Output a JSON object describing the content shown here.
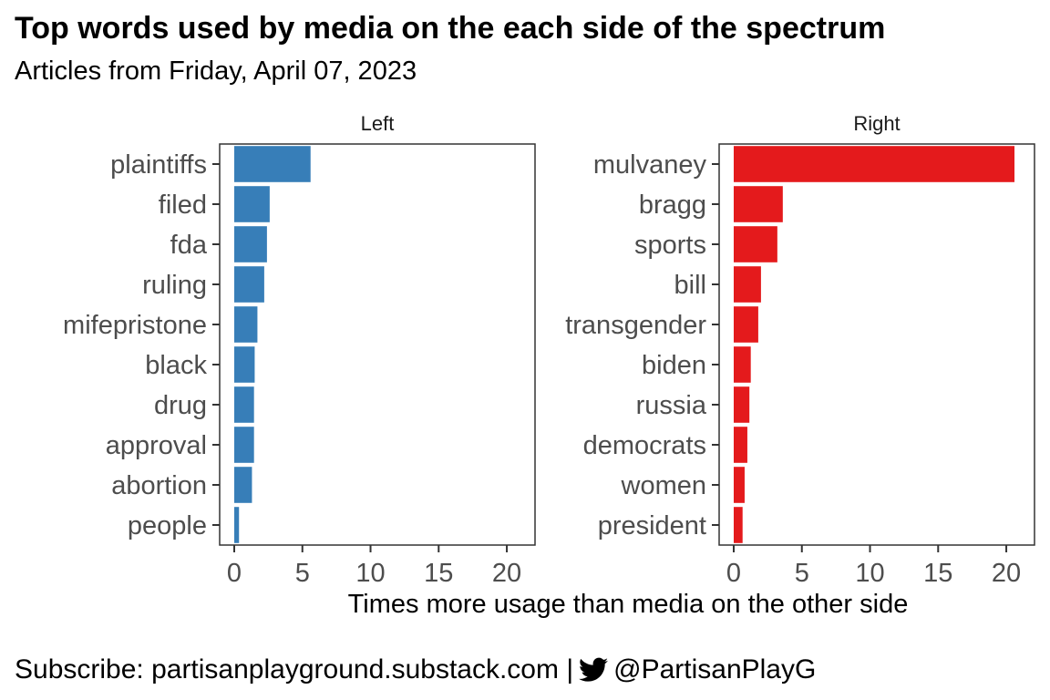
{
  "chart_data": {
    "type": "bar",
    "orientation": "horizontal",
    "title": "Top words used by media on the each side of the spectrum",
    "subtitle": "Articles from Friday, April 07, 2023",
    "xlabel": "Times more usage than media on the other side",
    "ylabel": "",
    "xlim": [
      0,
      21
    ],
    "xticks": [
      0,
      5,
      10,
      15,
      20
    ],
    "grid": false,
    "panels": [
      {
        "name": "Left",
        "color": "#377EB8",
        "categories": [
          "plaintiffs",
          "filed",
          "fda",
          "ruling",
          "mifepristone",
          "black",
          "drug",
          "approval",
          "abortion",
          "people"
        ],
        "values": [
          5.6,
          2.6,
          2.4,
          2.2,
          1.7,
          1.5,
          1.45,
          1.45,
          1.3,
          0.35
        ]
      },
      {
        "name": "Right",
        "color": "#E41A1C",
        "categories": [
          "mulvaney",
          "bragg",
          "sports",
          "bill",
          "transgender",
          "biden",
          "russia",
          "democrats",
          "women",
          "president"
        ],
        "values": [
          20.6,
          3.6,
          3.2,
          2.0,
          1.8,
          1.25,
          1.15,
          1.0,
          0.8,
          0.65
        ]
      }
    ]
  },
  "footer": {
    "text_before": "Subscribe: partisanplayground.substack.com |",
    "icon": "twitter-bird-icon",
    "text_after": "@PartisanPlayG"
  }
}
